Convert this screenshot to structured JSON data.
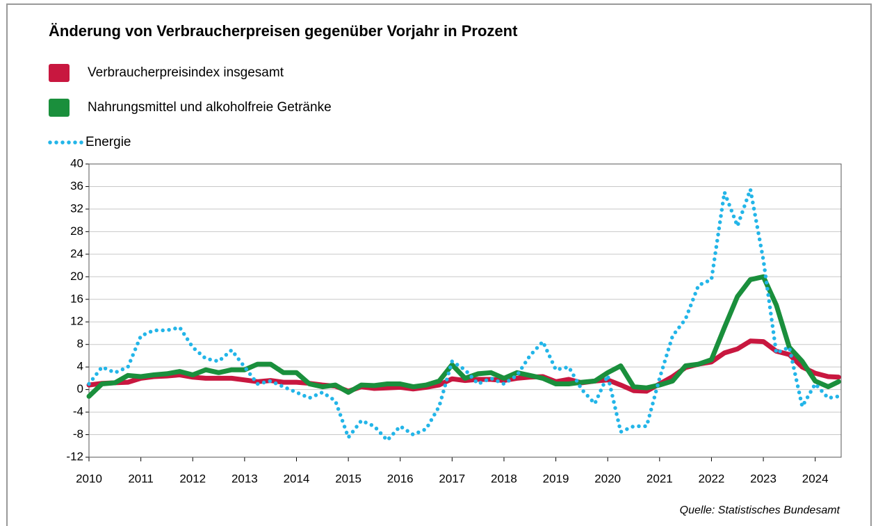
{
  "chart_data": {
    "type": "line",
    "title": "Änderung von Verbraucherpreisen gegenüber Vorjahr in Prozent",
    "source": "Quelle: Statistisches Bundesamt",
    "x": [
      2010,
      2010.25,
      2010.5,
      2010.75,
      2011,
      2011.25,
      2011.5,
      2011.75,
      2012,
      2012.25,
      2012.5,
      2012.75,
      2013,
      2013.25,
      2013.5,
      2013.75,
      2014,
      2014.25,
      2014.5,
      2014.75,
      2015,
      2015.25,
      2015.5,
      2015.75,
      2016,
      2016.25,
      2016.5,
      2016.75,
      2017,
      2017.25,
      2017.5,
      2017.75,
      2018,
      2018.25,
      2018.5,
      2018.75,
      2019,
      2019.25,
      2019.5,
      2019.75,
      2020,
      2020.25,
      2020.5,
      2020.75,
      2021,
      2021.25,
      2021.5,
      2021.75,
      2022,
      2022.25,
      2022.5,
      2022.75,
      2023,
      2023.25,
      2023.5,
      2023.75,
      2024,
      2024.25,
      2024.45
    ],
    "series": [
      {
        "name": "Verbraucherpreisindex insgesamt",
        "color": "#c8173f",
        "style": "solid",
        "values": [
          0.8,
          1.1,
          1.2,
          1.3,
          2.0,
          2.3,
          2.4,
          2.6,
          2.2,
          2.0,
          2.0,
          2.0,
          1.7,
          1.4,
          1.6,
          1.3,
          1.3,
          1.1,
          0.8,
          0.6,
          -0.3,
          0.5,
          0.2,
          0.3,
          0.4,
          0.1,
          0.4,
          0.8,
          1.9,
          1.6,
          1.8,
          1.8,
          1.6,
          2.0,
          2.2,
          2.3,
          1.4,
          1.8,
          1.2,
          1.5,
          1.7,
          0.8,
          -0.2,
          -0.3,
          1.0,
          2.3,
          3.9,
          4.5,
          4.9,
          6.5,
          7.2,
          8.6,
          8.5,
          6.8,
          6.2,
          4.0,
          2.9,
          2.3,
          2.2
        ]
      },
      {
        "name": "Nahrungsmittel und alkoholfreie Getränke",
        "color": "#1a8f3c",
        "style": "solid",
        "values": [
          -1.2,
          1.0,
          1.2,
          2.5,
          2.3,
          2.6,
          2.8,
          3.2,
          2.6,
          3.5,
          3.0,
          3.5,
          3.5,
          4.5,
          4.5,
          3.0,
          3.0,
          1.0,
          0.5,
          0.8,
          -0.5,
          0.8,
          0.7,
          1.0,
          1.0,
          0.5,
          0.8,
          1.5,
          4.4,
          2.0,
          2.8,
          3.0,
          2.0,
          3.0,
          2.5,
          2.0,
          1.0,
          1.0,
          1.3,
          1.5,
          3.0,
          4.2,
          0.5,
          0.3,
          0.8,
          1.5,
          4.2,
          4.5,
          5.3,
          11.0,
          16.5,
          19.5,
          20.0,
          15.0,
          7.5,
          5.0,
          1.5,
          0.5,
          1.4
        ]
      },
      {
        "name": "Energie",
        "color": "#23b5e8",
        "style": "dotted",
        "values": [
          1.0,
          4.0,
          3.0,
          4.0,
          9.5,
          10.5,
          10.5,
          11.0,
          7.5,
          5.5,
          5.0,
          7.0,
          4.0,
          1.0,
          1.5,
          0.5,
          -0.5,
          -1.5,
          -0.5,
          -2.0,
          -8.5,
          -5.5,
          -6.5,
          -9.0,
          -6.5,
          -8.0,
          -7.0,
          -3.0,
          5.0,
          3.5,
          1.0,
          2.0,
          1.0,
          2.5,
          6.0,
          8.5,
          3.5,
          4.0,
          0.0,
          -2.5,
          2.5,
          -7.5,
          -6.5,
          -6.5,
          2.0,
          9.5,
          12.5,
          18.5,
          19.5,
          35.0,
          29.0,
          35.5,
          23.0,
          6.5,
          7.5,
          -3.0,
          1.0,
          -1.5,
          -1.2
        ]
      }
    ],
    "xlim": [
      2010,
      2024.5
    ],
    "xticks": [
      2010,
      2011,
      2012,
      2013,
      2014,
      2015,
      2016,
      2017,
      2018,
      2019,
      2020,
      2021,
      2022,
      2023,
      2024
    ],
    "ylim": [
      -12,
      40
    ],
    "yticks": [
      -12,
      -8,
      -4,
      0,
      4,
      8,
      12,
      16,
      20,
      24,
      28,
      32,
      36,
      40
    ],
    "grid": true
  }
}
